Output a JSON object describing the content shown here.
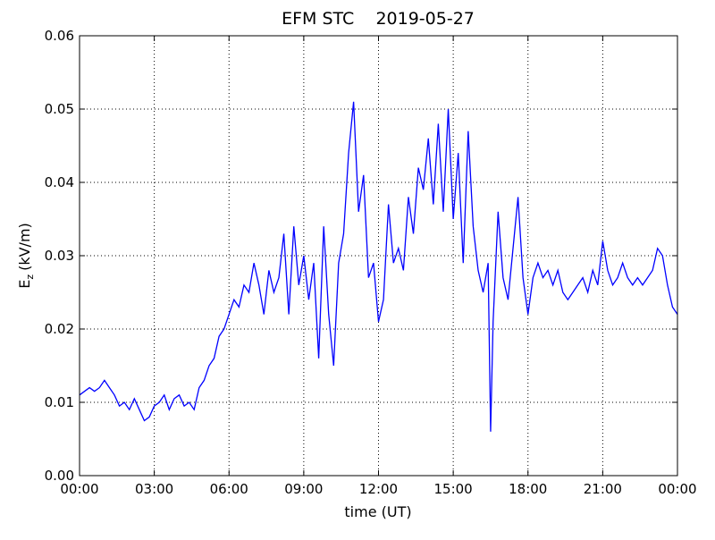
{
  "chart_data": {
    "type": "line",
    "title": "EFM STC    2019-05-27",
    "xlabel": "time (UT)",
    "ylabel": [
      "E",
      "z",
      "(kV/m)"
    ],
    "xlim": [
      0,
      24
    ],
    "ylim": [
      0,
      0.06
    ],
    "xticks": [
      {
        "value": 0,
        "label": "00:00"
      },
      {
        "value": 3,
        "label": "03:00"
      },
      {
        "value": 6,
        "label": "06:00"
      },
      {
        "value": 9,
        "label": "09:00"
      },
      {
        "value": 12,
        "label": "12:00"
      },
      {
        "value": 15,
        "label": "15:00"
      },
      {
        "value": 18,
        "label": "18:00"
      },
      {
        "value": 21,
        "label": "21:00"
      },
      {
        "value": 24,
        "label": "00:00"
      }
    ],
    "yticks": [
      {
        "value": 0,
        "label": "0.00"
      },
      {
        "value": 0.01,
        "label": "0.01"
      },
      {
        "value": 0.02,
        "label": "0.02"
      },
      {
        "value": 0.03,
        "label": "0.03"
      },
      {
        "value": 0.04,
        "label": "0.04"
      },
      {
        "value": 0.05,
        "label": "0.05"
      },
      {
        "value": 0.06,
        "label": "0.06"
      }
    ],
    "grid": true,
    "x": [
      0,
      0.2,
      0.4,
      0.6,
      0.8,
      1.0,
      1.2,
      1.4,
      1.6,
      1.8,
      2.0,
      2.2,
      2.4,
      2.6,
      2.8,
      3.0,
      3.2,
      3.4,
      3.6,
      3.8,
      4.0,
      4.2,
      4.4,
      4.6,
      4.8,
      5.0,
      5.2,
      5.4,
      5.6,
      5.8,
      6.0,
      6.2,
      6.4,
      6.6,
      6.8,
      7.0,
      7.2,
      7.4,
      7.6,
      7.8,
      8.0,
      8.2,
      8.4,
      8.6,
      8.8,
      9.0,
      9.2,
      9.4,
      9.6,
      9.8,
      10.0,
      10.2,
      10.4,
      10.6,
      10.8,
      11.0,
      11.2,
      11.4,
      11.6,
      11.8,
      12.0,
      12.2,
      12.4,
      12.6,
      12.8,
      13.0,
      13.2,
      13.4,
      13.6,
      13.8,
      14.0,
      14.2,
      14.4,
      14.6,
      14.8,
      15.0,
      15.2,
      15.4,
      15.6,
      15.8,
      16.0,
      16.2,
      16.4,
      16.5,
      16.6,
      16.8,
      17.0,
      17.2,
      17.4,
      17.6,
      17.8,
      18.0,
      18.2,
      18.4,
      18.6,
      18.8,
      19.0,
      19.2,
      19.4,
      19.6,
      19.8,
      20.0,
      20.2,
      20.4,
      20.6,
      20.8,
      21.0,
      21.2,
      21.4,
      21.6,
      21.8,
      22.0,
      22.2,
      22.4,
      22.6,
      22.8,
      23.0,
      23.2,
      23.4,
      23.6,
      23.8,
      24.0
    ],
    "series": [
      {
        "name": "Ez",
        "color": "#0000ff",
        "values": [
          0.011,
          0.0115,
          0.012,
          0.0115,
          0.012,
          0.013,
          0.012,
          0.011,
          0.0095,
          0.01,
          0.009,
          0.0105,
          0.009,
          0.0075,
          0.008,
          0.0095,
          0.01,
          0.011,
          0.009,
          0.0105,
          0.011,
          0.0095,
          0.01,
          0.009,
          0.012,
          0.013,
          0.015,
          0.016,
          0.019,
          0.02,
          0.022,
          0.024,
          0.023,
          0.026,
          0.025,
          0.029,
          0.026,
          0.022,
          0.028,
          0.025,
          0.027,
          0.033,
          0.022,
          0.034,
          0.026,
          0.03,
          0.024,
          0.029,
          0.016,
          0.034,
          0.022,
          0.015,
          0.029,
          0.033,
          0.044,
          0.051,
          0.036,
          0.041,
          0.027,
          0.029,
          0.021,
          0.024,
          0.037,
          0.029,
          0.031,
          0.028,
          0.038,
          0.033,
          0.042,
          0.039,
          0.046,
          0.037,
          0.048,
          0.036,
          0.05,
          0.035,
          0.044,
          0.029,
          0.047,
          0.034,
          0.028,
          0.025,
          0.029,
          0.006,
          0.021,
          0.036,
          0.027,
          0.024,
          0.031,
          0.038,
          0.027,
          0.022,
          0.027,
          0.029,
          0.027,
          0.028,
          0.026,
          0.028,
          0.025,
          0.024,
          0.025,
          0.026,
          0.027,
          0.025,
          0.028,
          0.026,
          0.032,
          0.028,
          0.026,
          0.027,
          0.029,
          0.027,
          0.026,
          0.027,
          0.026,
          0.027,
          0.028,
          0.031,
          0.03,
          0.026,
          0.023,
          0.022
        ]
      }
    ]
  }
}
